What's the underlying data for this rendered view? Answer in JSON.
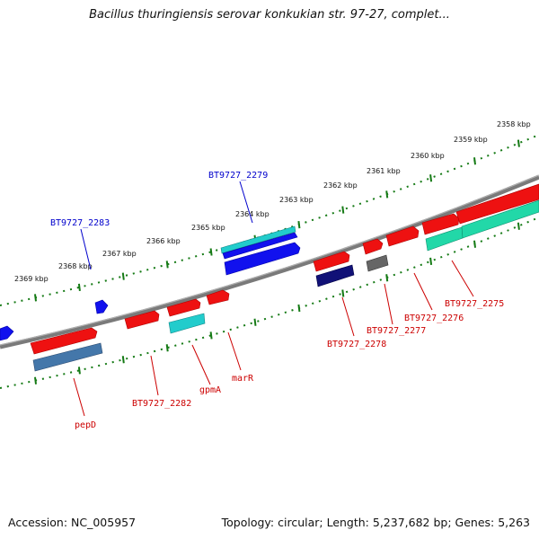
{
  "title": "Bacillus thuringiensis serovar konkukian str. 97-27, complet...",
  "footer": {
    "accession": "Accession: NC_005957",
    "summary": "Topology: circular; Length: 5,237,682 bp; Genes: 5,263"
  },
  "colors": {
    "backbone": "#7a7a7a",
    "tick": "#157a15",
    "forward_gene": "#ee1111",
    "label_red": "#cc0000",
    "label_blue": "#0000cc",
    "blue_gene": "#1111ee",
    "cyan_gene": "#22cccc",
    "teal_gene": "#22d8a8",
    "steel_gene": "#4477aa",
    "navy_gene": "#111177",
    "grey_gene": "#666666"
  },
  "scale_labels": [
    "2358 kbp",
    "2359 kbp",
    "2360 kbp",
    "2361 kbp",
    "2362 kbp",
    "2363 kbp",
    "2364 kbp",
    "2365 kbp",
    "2366 kbp",
    "2367 kbp",
    "2368 kbp",
    "2369 kbp"
  ],
  "gene_labels": [
    {
      "id": "BT9727_2283",
      "color": "blue"
    },
    {
      "id": "BT9727_2279",
      "color": "blue"
    },
    {
      "id": "pepD",
      "color": "red"
    },
    {
      "id": "BT9727_2282",
      "color": "red"
    },
    {
      "id": "gpmA",
      "color": "red"
    },
    {
      "id": "marR",
      "color": "red"
    },
    {
      "id": "BT9727_2278",
      "color": "red"
    },
    {
      "id": "BT9727_2277",
      "color": "red"
    },
    {
      "id": "BT9727_2276",
      "color": "red"
    },
    {
      "id": "BT9727_2275",
      "color": "red"
    }
  ]
}
